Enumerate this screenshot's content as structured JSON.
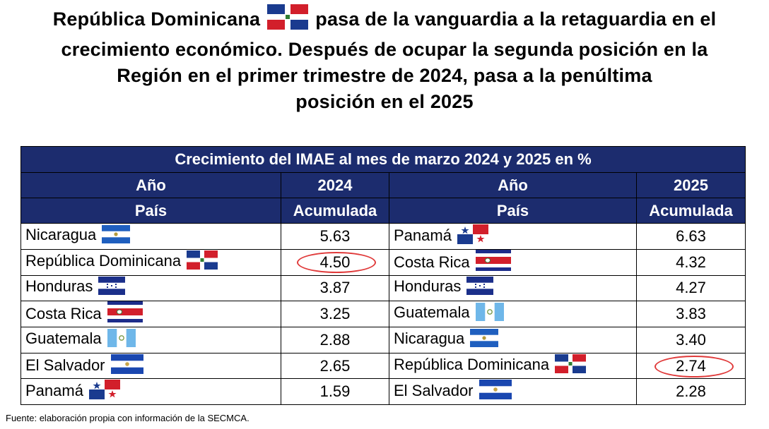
{
  "headline": {
    "part1": "República Dominicana",
    "part2": "pasa de la vanguardia a la retaguardia en el",
    "line2": "crecimiento económico. Después de ocupar la segunda posición en la",
    "line3": "Región en el primer trimestre de 2024, pasa a la penúltima",
    "line4": "posición en el 2025",
    "flag_icon": "dominican-republic-flag-icon"
  },
  "table": {
    "title": "Crecimiento del IMAE al mes de marzo 2024 y 2025 en %",
    "year_label": "Año",
    "year_left": "2024",
    "year_right": "2025",
    "country_label": "País",
    "cumulative_label": "Acumulada",
    "header_color": "#1c2c6e",
    "highlight_color": "#e03a3a",
    "rows": [
      {
        "left_country": "Nicaragua",
        "left_flag": "nicaragua-flag-icon",
        "left_value": "5.63",
        "right_country": "Panamá",
        "right_flag": "panama-flag-icon",
        "right_value": "6.63"
      },
      {
        "left_country": "República Dominicana",
        "left_flag": "dominican-republic-flag-icon",
        "left_value": "4.50",
        "right_country": "Costa Rica",
        "right_flag": "costa-rica-flag-icon",
        "right_value": "4.32"
      },
      {
        "left_country": "Honduras",
        "left_flag": "honduras-flag-icon",
        "left_value": "3.87",
        "right_country": "Honduras",
        "right_flag": "honduras-flag-icon",
        "right_value": "4.27"
      },
      {
        "left_country": "Costa Rica",
        "left_flag": "costa-rica-flag-icon",
        "left_value": "3.25",
        "right_country": "Guatemala",
        "right_flag": "guatemala-flag-icon",
        "right_value": "3.83"
      },
      {
        "left_country": "Guatemala",
        "left_flag": "guatemala-flag-icon",
        "left_value": "2.88",
        "right_country": "Nicaragua",
        "right_flag": "nicaragua-flag-icon",
        "right_value": "3.40"
      },
      {
        "left_country": "El Salvador",
        "left_flag": "el-salvador-flag-icon",
        "left_value": "2.65",
        "right_country": "República Dominicana",
        "right_flag": "dominican-republic-flag-icon",
        "right_value": "2.74"
      },
      {
        "left_country": "Panamá",
        "left_flag": "panama-flag-icon",
        "left_value": "1.59",
        "right_country": "El Salvador",
        "right_flag": "el-salvador-flag-icon",
        "right_value": "2.28"
      }
    ]
  },
  "source": "Fuente: elaboración propia con información de la SECMCA."
}
